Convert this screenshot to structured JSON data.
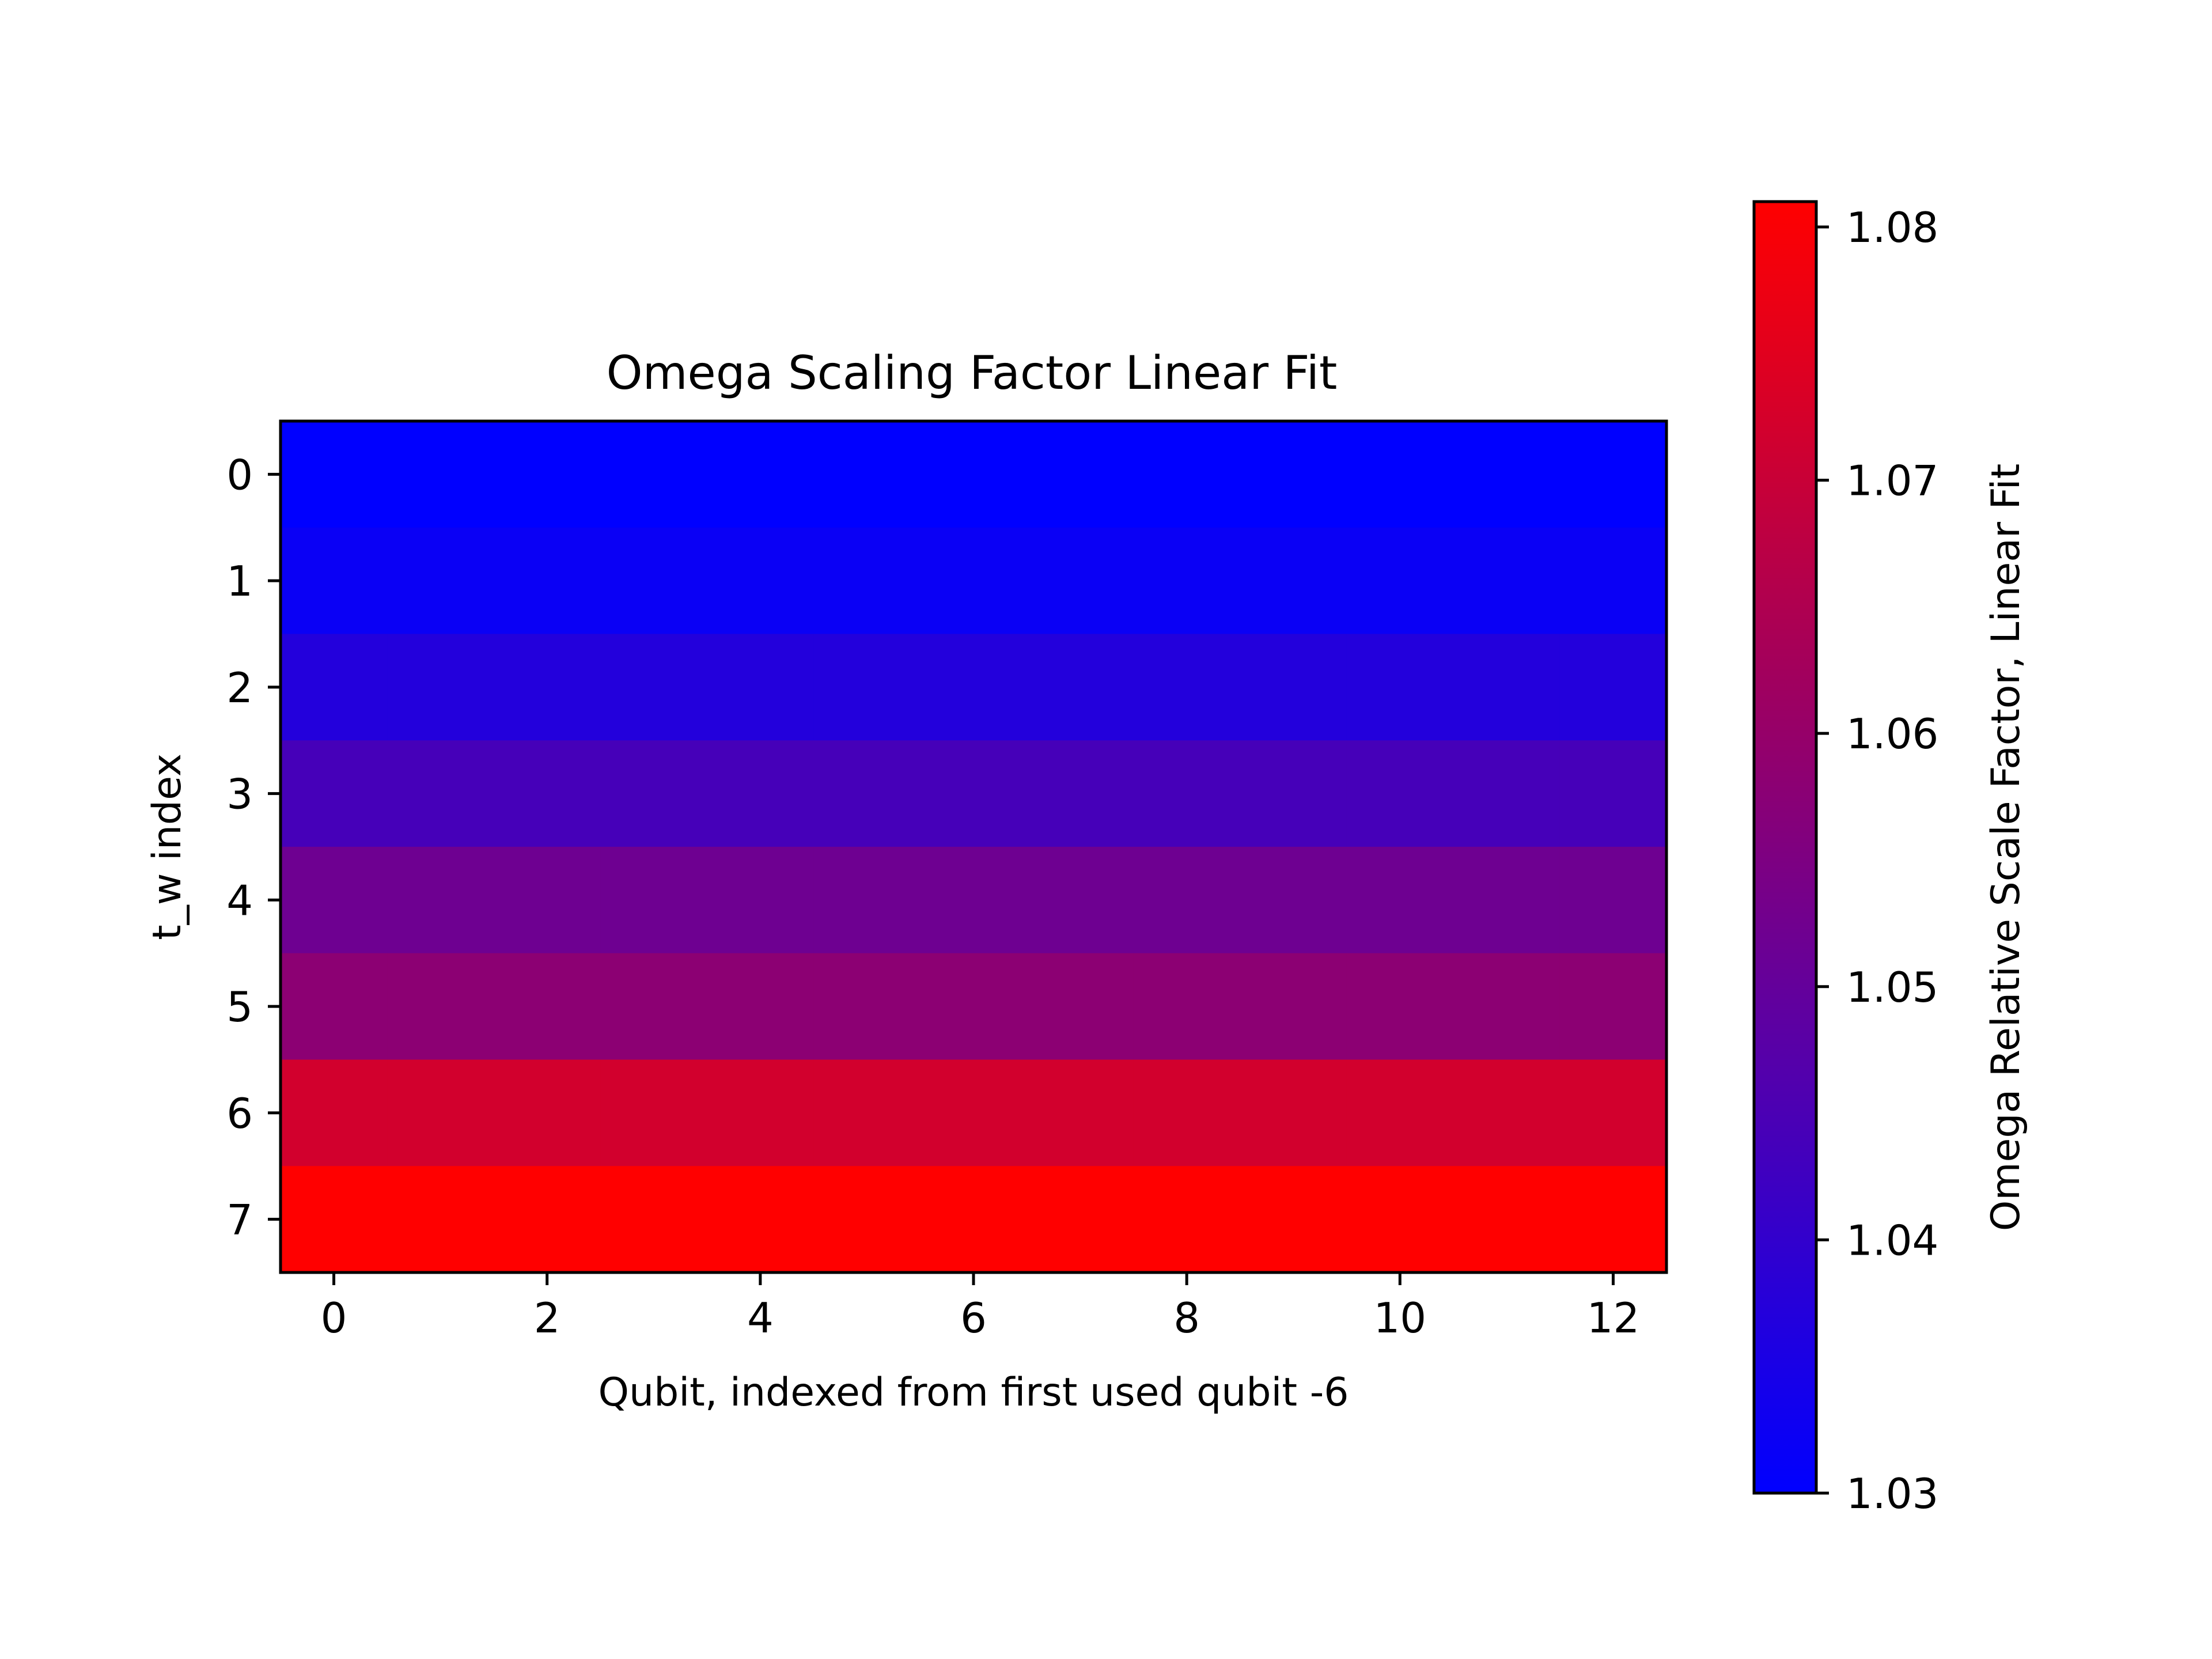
{
  "chart_data": {
    "type": "heatmap",
    "title": "Omega Scaling Factor Linear Fit",
    "xlabel": "Qubit, indexed from first used qubit -6",
    "ylabel": "t_w index",
    "x": [
      0,
      1,
      2,
      3,
      4,
      5,
      6,
      7,
      8,
      9,
      10,
      11,
      12
    ],
    "y": [
      0,
      1,
      2,
      3,
      4,
      5,
      6,
      7
    ],
    "x_ticks": [
      "0",
      "2",
      "4",
      "6",
      "8",
      "10",
      "12"
    ],
    "y_ticks": [
      "0",
      "1",
      "2",
      "3",
      "4",
      "5",
      "6",
      "7"
    ],
    "xlim": [
      -0.5,
      12.5
    ],
    "ylim": [
      7.5,
      -0.5
    ],
    "row_values": [
      1.03,
      1.032,
      1.037,
      1.044,
      1.052,
      1.058,
      1.072,
      1.081
    ],
    "note_rows_constant_across_x": true,
    "colorbar": {
      "label": "Omega Relative Scale Factor, Linear Fit",
      "vmin": 1.03,
      "vmax": 1.081,
      "ticks": [
        "1.03",
        "1.04",
        "1.05",
        "1.06",
        "1.07",
        "1.08"
      ],
      "colormap": [
        "#0000ff",
        "#ff0000"
      ]
    },
    "grid": false
  }
}
